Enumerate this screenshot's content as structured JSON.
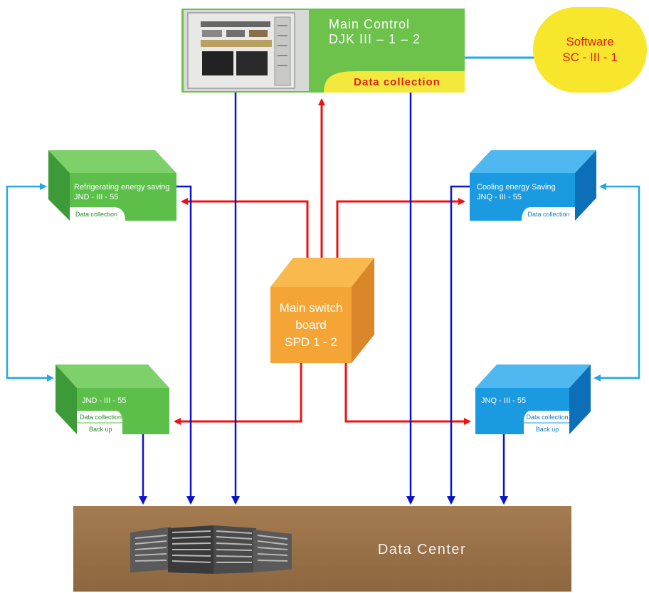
{
  "main_control": {
    "title": "Main Control",
    "model": "DJK III – 1 – 2",
    "tag": "Data collection"
  },
  "software": {
    "line1": "Software",
    "line2": "SC - III - 1"
  },
  "refrigerating_unit": {
    "title": "Refrigerating energy saving",
    "model": "JND - III - 55",
    "tag": "Data collection"
  },
  "refrigerating_backup_unit": {
    "model": "JND - III - 55",
    "tag1": "Data collection",
    "tag2": "Back up"
  },
  "cooling_unit": {
    "title": "Cooling energy Saving",
    "model": "JNQ - III - 55",
    "tag": "Data collection"
  },
  "cooling_backup_unit": {
    "model": "JNQ - III - 55",
    "tag1": "Data collection",
    "tag2": "Back up"
  },
  "main_switch": {
    "line1": "Main switch",
    "line2": "board",
    "line3": "SPD 1 - 2"
  },
  "data_center": {
    "label": "Data Center"
  },
  "colors": {
    "green_box": "#5cbf4a",
    "blue_box": "#1a9ae0",
    "orange_box": "#f5a535",
    "red_arrow": "#ee1111",
    "blue_arrow": "#0a14cc",
    "light_blue_arrow": "#22a8e8",
    "data_center": "#a0774e",
    "software": "#f7e62b"
  }
}
